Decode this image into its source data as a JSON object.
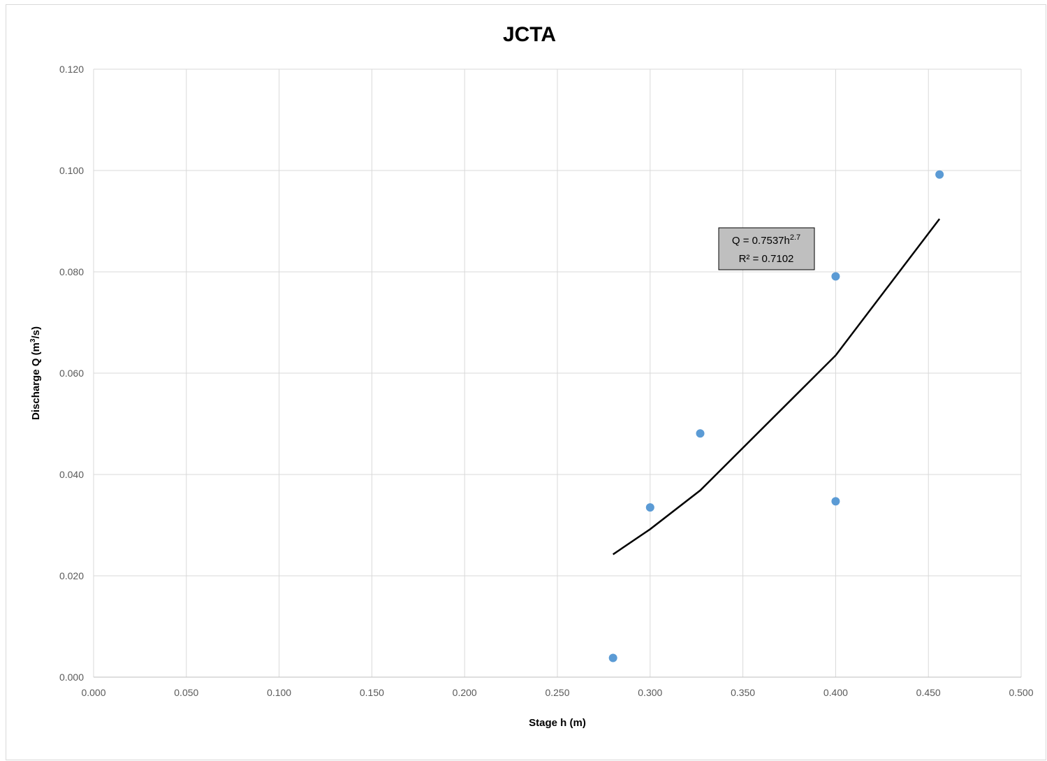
{
  "chart_data": {
    "type": "scatter",
    "title": "JCTA",
    "xlabel": "Stage h (m)",
    "ylabel_main": "Discharge Q (m",
    "ylabel_sup": "3",
    "ylabel_end": "/s)",
    "xlim": [
      0,
      0.5
    ],
    "ylim": [
      0,
      0.12
    ],
    "xticks": [
      "0.000",
      "0.050",
      "0.100",
      "0.150",
      "0.200",
      "0.250",
      "0.300",
      "0.350",
      "0.400",
      "0.450",
      "0.500"
    ],
    "yticks": [
      "0.000",
      "0.020",
      "0.040",
      "0.060",
      "0.080",
      "0.100",
      "0.120"
    ],
    "grid": true,
    "series": [
      {
        "points": [
          {
            "x": 0.28,
            "y": 0.0038
          },
          {
            "x": 0.3,
            "y": 0.0335
          },
          {
            "x": 0.327,
            "y": 0.0481
          },
          {
            "x": 0.4,
            "y": 0.0791
          },
          {
            "x": 0.4,
            "y": 0.0347
          },
          {
            "x": 0.456,
            "y": 0.0992
          }
        ],
        "color": "#5b9bd5"
      }
    ],
    "trendline": {
      "type": "power",
      "coefficient": 0.7537,
      "exponent": 2.7,
      "x_points": [
        0.28,
        0.3,
        0.327,
        0.4,
        0.456
      ],
      "color": "#000000",
      "equation_prefix": "Q = 0.7537h",
      "equation_exponent": "2.7",
      "r2_text": "R² = 0.7102"
    }
  }
}
